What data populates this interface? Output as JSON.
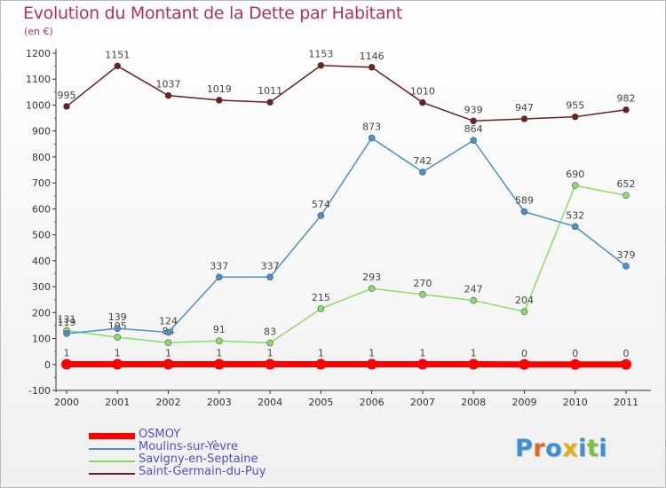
{
  "title": "Evolution du Montant de la Dette par Habitant",
  "subtitle": "(en €)",
  "logo_text": "Proxiti",
  "chart_data": {
    "type": "line",
    "x": [
      "2000",
      "2001",
      "2002",
      "2003",
      "2004",
      "2005",
      "2006",
      "2007",
      "2008",
      "2009",
      "2010",
      "2011"
    ],
    "ylim": [
      -100,
      1200
    ],
    "yticks": [
      -100,
      0,
      100,
      200,
      300,
      400,
      500,
      600,
      700,
      800,
      900,
      1000,
      1100,
      1200
    ],
    "grid": false,
    "legend_placement": "bottom-left",
    "series": [
      {
        "name": "OSMOY",
        "color": "#ff0000",
        "values": [
          1,
          1,
          1,
          1,
          1,
          1,
          1,
          1,
          1,
          0,
          0,
          0
        ]
      },
      {
        "name": "Moulins-sur-Yèvre",
        "color": "#4a8fd0",
        "values": [
          119,
          139,
          124,
          337,
          337,
          574,
          873,
          742,
          864,
          589,
          532,
          379
        ]
      },
      {
        "name": "Savigny-en-Septaine",
        "color": "#88dd66",
        "values": [
          131,
          105,
          84,
          91,
          83,
          215,
          293,
          270,
          247,
          204,
          690,
          652
        ]
      },
      {
        "name": "Saint-Germain-du-Puy",
        "color": "#6b1f1f",
        "values": [
          995,
          1151,
          1037,
          1019,
          1011,
          1153,
          1146,
          1010,
          939,
          947,
          955,
          982
        ]
      }
    ]
  }
}
